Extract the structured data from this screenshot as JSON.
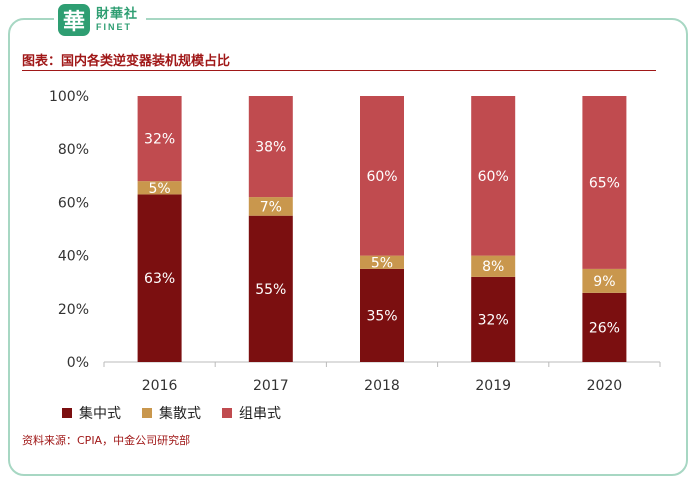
{
  "logo": {
    "mark": "華",
    "name_cn": "財華社",
    "name_en": "FINET"
  },
  "title": "图表：国内各类逆变器装机规模占比",
  "source": "资料来源：CPIA，中金公司研究部",
  "chart_data": {
    "type": "bar",
    "stacked": true,
    "categories": [
      "2016",
      "2017",
      "2018",
      "2019",
      "2020"
    ],
    "series": [
      {
        "name": "集中式",
        "values": [
          63,
          55,
          35,
          32,
          26
        ],
        "labels": [
          "63%",
          "55%",
          "35%",
          "32%",
          "26%"
        ],
        "color": "#7b0f10"
      },
      {
        "name": "集散式",
        "values": [
          5,
          7,
          5,
          8,
          9
        ],
        "labels": [
          "5%",
          "7%",
          "5%",
          "8%",
          "9%"
        ],
        "color": "#c9974d"
      },
      {
        "name": "组串式",
        "values": [
          32,
          38,
          60,
          60,
          65
        ],
        "labels": [
          "32%",
          "38%",
          "60%",
          "60%",
          "65%"
        ],
        "color": "#c04b4f"
      }
    ],
    "yticks": [
      "0%",
      "20%",
      "40%",
      "60%",
      "80%",
      "100%"
    ],
    "ylim": [
      0,
      100
    ],
    "legend": "bottom-left",
    "label_color": "#ffffff"
  }
}
